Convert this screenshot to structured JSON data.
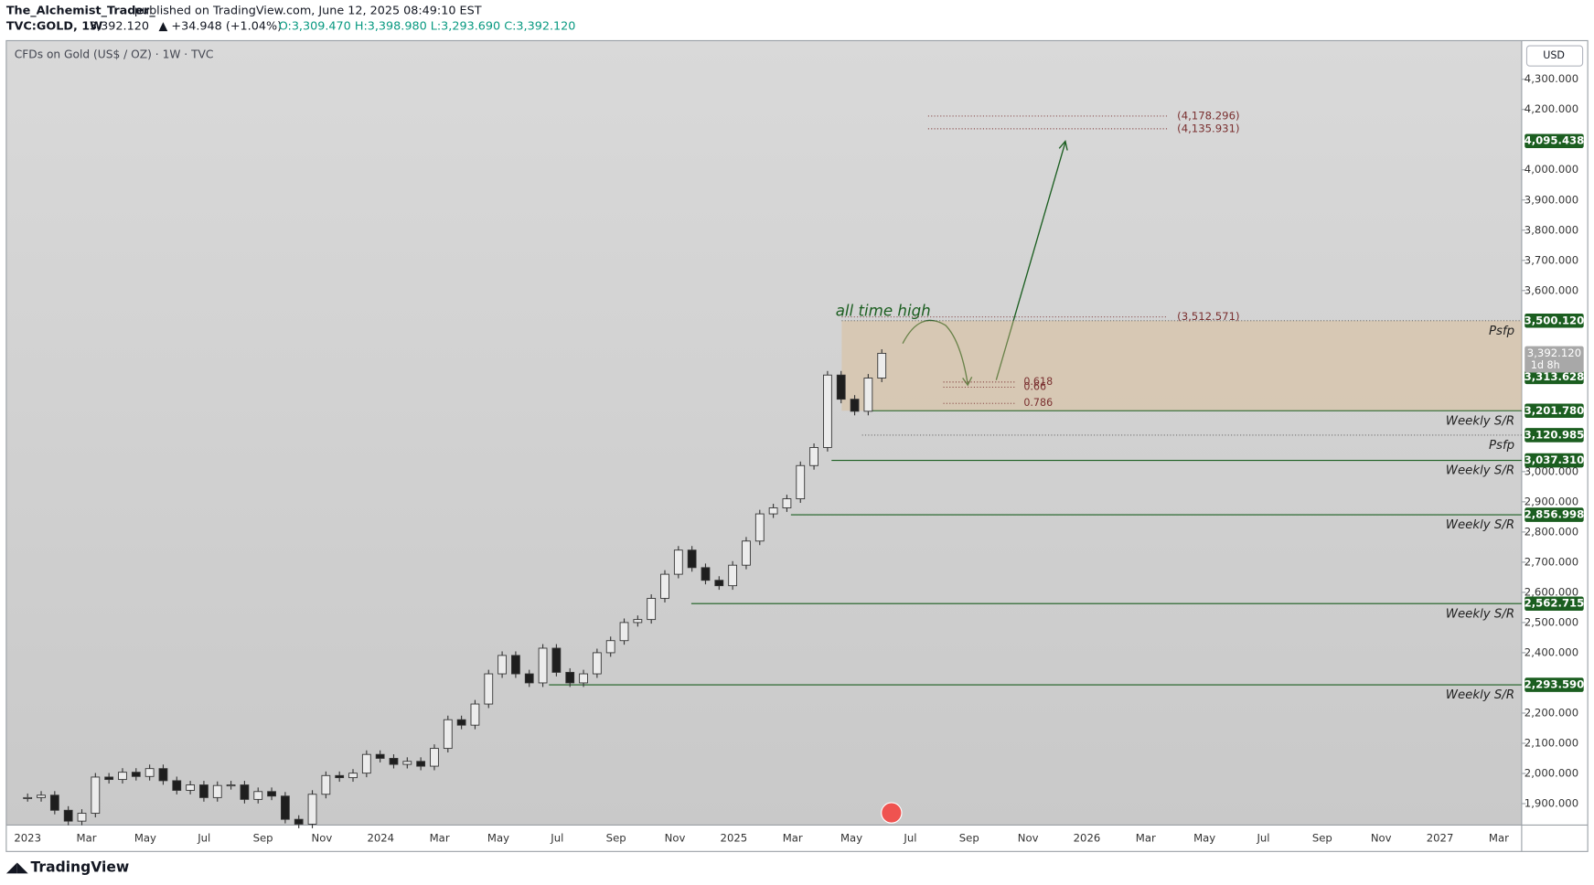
{
  "header": {
    "author": "The_Alchemist_Trader_",
    "published": "published on TradingView.com, June 12, 2025 08:49:10 EST",
    "symbol": "TVC:GOLD, 1W",
    "last": "3,392.120",
    "change": "▲ +34.948 (+1.04%)",
    "ohlc": "O:3,309.470 H:3,398.980 L:3,293.690 C:3,392.120"
  },
  "chart": {
    "type": "candlestick",
    "title": "CFDs on Gold (US$ / OZ) · 1W · TVC",
    "currency": "USD",
    "ylim": [
      1829,
      4428
    ],
    "yticks": [
      {
        "value": 4300,
        "label": "4,300.000"
      },
      {
        "value": 4200,
        "label": "4,200.000"
      },
      {
        "value": 4000,
        "label": "4,000.000"
      },
      {
        "value": 3900,
        "label": "3,900.000"
      },
      {
        "value": 3800,
        "label": "3,800.000"
      },
      {
        "value": 3700,
        "label": "3,700.000"
      },
      {
        "value": 3600,
        "label": "3,600.000"
      },
      {
        "value": 3000,
        "label": "3,000.000"
      },
      {
        "value": 2900,
        "label": "2,900.000"
      },
      {
        "value": 2800,
        "label": "2,800.000"
      },
      {
        "value": 2700,
        "label": "2,700.000"
      },
      {
        "value": 2600,
        "label": "2,600.000"
      },
      {
        "value": 2500,
        "label": "2,500.000"
      },
      {
        "value": 2400,
        "label": "2,400.000"
      },
      {
        "value": 2200,
        "label": "2,200.000"
      },
      {
        "value": 2100,
        "label": "2,100.000"
      },
      {
        "value": 2000,
        "label": "2,000.000"
      },
      {
        "value": 1900,
        "label": "1,900.000"
      }
    ],
    "time_labels": [
      "2023",
      "Mar",
      "May",
      "Jul",
      "Sep",
      "Nov",
      "2024",
      "Mar",
      "May",
      "Jul",
      "Sep",
      "Nov",
      "2025",
      "Mar",
      "May",
      "Jul",
      "Sep",
      "Nov",
      "2026",
      "Mar",
      "May",
      "Jul",
      "Sep",
      "Nov",
      "2027",
      "Mar"
    ],
    "closes": [
      1920,
      1928,
      1878,
      1842,
      1868,
      1988,
      1980,
      2004,
      1990,
      2016,
      1976,
      1944,
      1962,
      1920,
      1960,
      1962,
      1914,
      1940,
      1925,
      1848,
      1832,
      1931,
      1993,
      1986,
      2001,
      2063,
      2050,
      2030,
      2040,
      2024,
      2083,
      2178,
      2160,
      2230,
      2330,
      2391,
      2330,
      2300,
      2415,
      2335,
      2300,
      2330,
      2400,
      2440,
      2500,
      2510,
      2580,
      2660,
      2740,
      2682,
      2640,
      2622,
      2690,
      2770,
      2860,
      2880,
      2910,
      3020,
      3080,
      3320,
      3240,
      3200,
      3310,
      3392
    ],
    "current_price": {
      "value": 3392.12,
      "label": "3,392.120"
    },
    "countdown": "1d 8h",
    "levels": [
      {
        "price": {
          "value": 4095.438,
          "label": "4,095.438"
        }
      },
      {
        "price": {
          "value": 3500.12,
          "label": "3,500.120"
        },
        "tag": "Psfp"
      },
      {
        "price": {
          "value": 3313.628,
          "label": "3,313.628"
        }
      },
      {
        "price": {
          "value": 3201.78,
          "label": "3,201.780"
        },
        "tag": "Weekly S/R"
      },
      {
        "price": {
          "value": 3120.985,
          "label": "3,120.985"
        },
        "tag": "Psfp"
      },
      {
        "price": {
          "value": 3037.31,
          "label": "3,037.310"
        },
        "tag": "Weekly S/R"
      },
      {
        "price": {
          "value": 2856.998,
          "label": "2,856.998"
        },
        "tag": "Weekly S/R"
      },
      {
        "price": {
          "value": 2562.715,
          "label": "2,562.715"
        },
        "tag": "Weekly S/R"
      },
      {
        "price": {
          "value": 2293.59,
          "label": "2,293.590"
        },
        "tag": "Weekly S/R"
      }
    ],
    "targets": [
      {
        "value": 4178.296,
        "label": "(4,178.296)"
      },
      {
        "value": 4135.931,
        "label": "(4,135.931)"
      },
      {
        "value": 3512.571,
        "label": "(3,512.571)"
      }
    ],
    "fib_labels": [
      "0.618",
      "0.66",
      "0.786"
    ],
    "annotation": "all time high",
    "footer": "TradingView"
  }
}
